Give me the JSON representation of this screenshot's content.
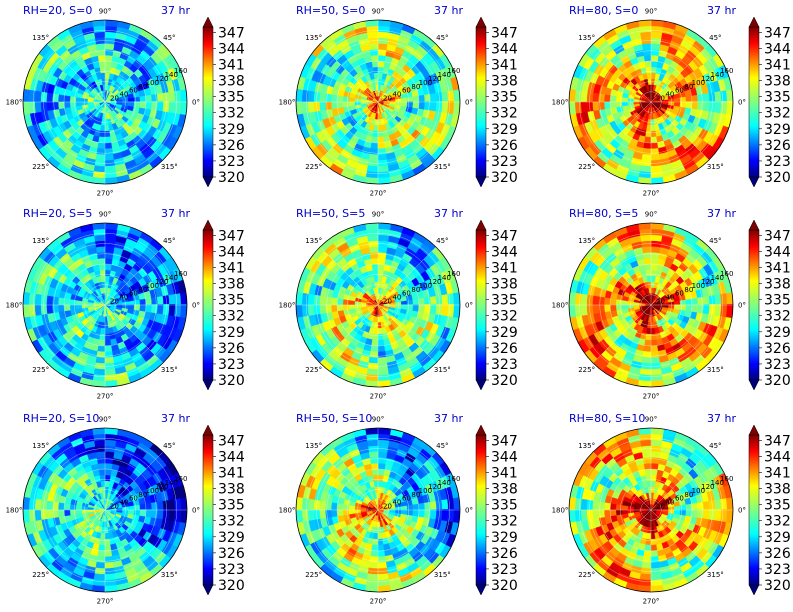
{
  "chart_data": {
    "type": "heatmap",
    "projection": "polar",
    "time_label": "37 hr",
    "angle_ticks": [
      "0°",
      "45°",
      "90°",
      "135°",
      "180°",
      "225°",
      "270°",
      "315°"
    ],
    "radial_ticks": [
      "20",
      "40",
      "60",
      "80",
      "100",
      "120",
      "140",
      "160"
    ],
    "colorbar": {
      "ticks": [
        "320",
        "323",
        "326",
        "329",
        "332",
        "335",
        "338",
        "341",
        "344",
        "347"
      ],
      "range": [
        320,
        348
      ],
      "colormap": "jet",
      "extend": "both"
    },
    "panels": [
      {
        "title": "RH=20, S=0",
        "rh": 20,
        "s": 0
      },
      {
        "title": "RH=50, S=0",
        "rh": 50,
        "s": 0
      },
      {
        "title": "RH=80, S=0",
        "rh": 80,
        "s": 0
      },
      {
        "title": "RH=20, S=5",
        "rh": 20,
        "s": 5
      },
      {
        "title": "RH=50, S=5",
        "rh": 50,
        "s": 5
      },
      {
        "title": "RH=80, S=5",
        "rh": 80,
        "s": 5
      },
      {
        "title": "RH=20, S=10",
        "rh": 20,
        "s": 10
      },
      {
        "title": "RH=50, S=10",
        "rh": 50,
        "s": 10
      },
      {
        "title": "RH=80, S=10",
        "rh": 80,
        "s": 10
      }
    ]
  }
}
